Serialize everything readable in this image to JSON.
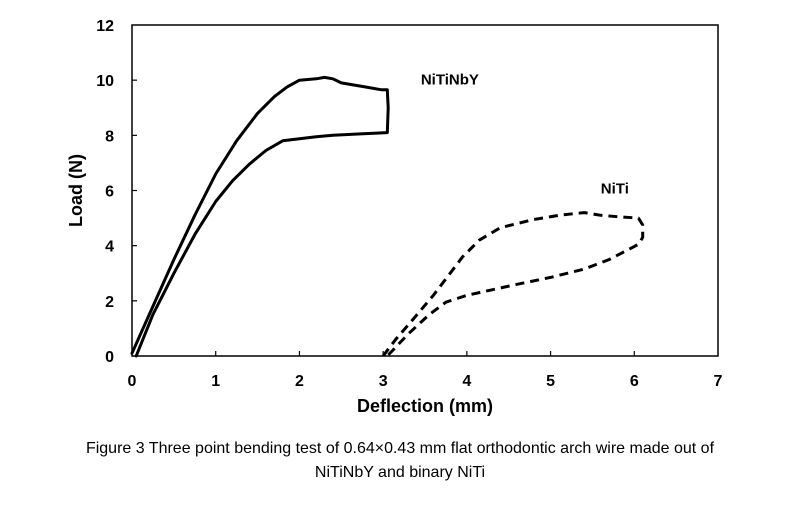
{
  "chart_data": {
    "type": "line",
    "title": "",
    "xlabel": "Deflection (mm)",
    "ylabel": "Load (N)",
    "xlim": [
      0,
      7
    ],
    "ylim": [
      0,
      12
    ],
    "xticks": [
      "0",
      "1",
      "2",
      "3",
      "4",
      "5",
      "6",
      "7"
    ],
    "yticks": [
      "0",
      "2",
      "4",
      "6",
      "8",
      "10",
      "12"
    ],
    "grid": false,
    "legend": "inline labels",
    "series": [
      {
        "name": "NiTiNbY",
        "style": "solid",
        "color": "#000000",
        "points": [
          [
            0,
            0.1
          ],
          [
            0.25,
            1.8
          ],
          [
            0.5,
            3.5
          ],
          [
            0.75,
            5.1
          ],
          [
            1.0,
            6.6
          ],
          [
            1.25,
            7.8
          ],
          [
            1.5,
            8.8
          ],
          [
            1.7,
            9.4
          ],
          [
            1.85,
            9.75
          ],
          [
            2.0,
            10.0
          ],
          [
            2.2,
            10.05
          ],
          [
            2.3,
            10.1
          ],
          [
            2.4,
            10.05
          ],
          [
            2.5,
            9.9
          ],
          [
            2.8,
            9.75
          ],
          [
            2.98,
            9.65
          ],
          [
            3.05,
            9.65
          ],
          [
            3.06,
            9.0
          ],
          [
            3.05,
            8.1
          ],
          [
            2.7,
            8.05
          ],
          [
            2.4,
            8.0
          ],
          [
            2.2,
            7.95
          ],
          [
            1.8,
            7.8
          ],
          [
            1.6,
            7.45
          ],
          [
            1.4,
            6.95
          ],
          [
            1.2,
            6.35
          ],
          [
            1.0,
            5.6
          ],
          [
            0.75,
            4.4
          ],
          [
            0.5,
            3.0
          ],
          [
            0.25,
            1.5
          ],
          [
            0.05,
            0.0
          ]
        ]
      },
      {
        "name": "NiTi",
        "style": "dashed",
        "color": "#000000",
        "points": [
          [
            3.0,
            0.0
          ],
          [
            3.15,
            0.6
          ],
          [
            3.35,
            1.3
          ],
          [
            3.6,
            2.2
          ],
          [
            3.8,
            3.0
          ],
          [
            3.95,
            3.6
          ],
          [
            4.15,
            4.2
          ],
          [
            4.4,
            4.65
          ],
          [
            4.8,
            4.95
          ],
          [
            5.1,
            5.1
          ],
          [
            5.4,
            5.2
          ],
          [
            5.6,
            5.1
          ],
          [
            5.8,
            5.05
          ],
          [
            6.05,
            5.0
          ],
          [
            6.1,
            4.75
          ],
          [
            6.1,
            4.3
          ],
          [
            6.05,
            4.05
          ],
          [
            5.7,
            3.5
          ],
          [
            5.4,
            3.15
          ],
          [
            5.0,
            2.85
          ],
          [
            4.6,
            2.6
          ],
          [
            4.3,
            2.4
          ],
          [
            4.0,
            2.2
          ],
          [
            3.75,
            1.95
          ],
          [
            3.55,
            1.5
          ],
          [
            3.3,
            0.8
          ],
          [
            3.05,
            0.0
          ]
        ]
      }
    ],
    "annotations": [
      "NiTiNbY",
      "NiTi"
    ]
  },
  "caption": {
    "line1": "Figure 3 Three point bending test of 0.64×0.43 mm flat orthodontic arch wire made out of",
    "line2": "NiTiNbY and binary NiTi"
  }
}
